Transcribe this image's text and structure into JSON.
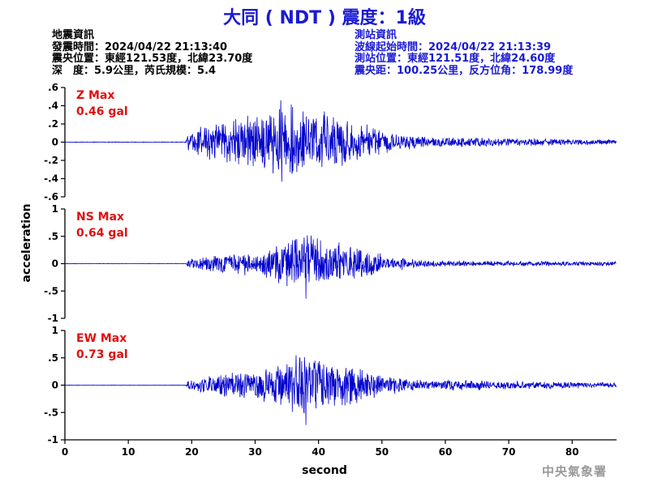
{
  "title": "大同 ( NDT ) 震度：1級",
  "quake_info": {
    "heading": "地震資訊",
    "origin_time": "發震時間：2024/04/22 21:13:40",
    "epicenter": "震央位置：東經121.53度，北緯23.70度",
    "depth_magnitude": "深　度：5.9公里，芮氏規模：5.4"
  },
  "station_info": {
    "heading": "測站資訊",
    "wave_start": "波線起始時間：2024/04/22 21:13:39",
    "location": "測站位置：東經121.51度，北緯24.60度",
    "distance": "震央距：100.25公里，反方位角：178.99度"
  },
  "credit": "中央氣象署",
  "colors": {
    "trace": "#0000cc",
    "title": "#1a1ad4",
    "peak_label": "#e01010"
  },
  "chart_data": {
    "type": "line",
    "xlabel": "second",
    "ylabel": "acceleration",
    "xlim": [
      0,
      87
    ],
    "xticks": [
      0,
      10,
      20,
      30,
      40,
      50,
      60,
      70,
      80
    ],
    "panels": [
      {
        "name": "Z Max",
        "peak_label": "0.46 gal",
        "ylim": [
          -0.6,
          0.6
        ],
        "yticks": [
          0.6,
          0.4,
          0.2,
          0,
          -0.2,
          -0.4,
          -0.6
        ],
        "amplitude": 0.46,
        "seed": 11,
        "envelope": [
          [
            0,
            0.004
          ],
          [
            19,
            0.004
          ],
          [
            19.5,
            0.12
          ],
          [
            22,
            0.22
          ],
          [
            27,
            0.28
          ],
          [
            33,
            0.38
          ],
          [
            34,
            0.46
          ],
          [
            38,
            0.38
          ],
          [
            44,
            0.3
          ],
          [
            48,
            0.2
          ],
          [
            52,
            0.1
          ],
          [
            58,
            0.06
          ],
          [
            72,
            0.045
          ],
          [
            87,
            0.03
          ]
        ]
      },
      {
        "name": "NS Max",
        "peak_label": "0.64 gal",
        "ylim": [
          -1,
          1
        ],
        "yticks": [
          1,
          0.5,
          0,
          -0.5,
          -1
        ],
        "amplitude": 0.64,
        "seed": 23,
        "envelope": [
          [
            0,
            0.004
          ],
          [
            19,
            0.004
          ],
          [
            19.5,
            0.08
          ],
          [
            24,
            0.18
          ],
          [
            30,
            0.26
          ],
          [
            35,
            0.45
          ],
          [
            38,
            0.6
          ],
          [
            41,
            0.5
          ],
          [
            45,
            0.36
          ],
          [
            50,
            0.2
          ],
          [
            55,
            0.08
          ],
          [
            60,
            0.06
          ],
          [
            87,
            0.04
          ]
        ]
      },
      {
        "name": "EW Max",
        "peak_label": "0.73 gal",
        "ylim": [
          -1,
          1
        ],
        "yticks": [
          1,
          0.5,
          0,
          -0.5,
          -1
        ],
        "amplitude": 0.73,
        "seed": 37,
        "envelope": [
          [
            0,
            0.004
          ],
          [
            19,
            0.004
          ],
          [
            19.5,
            0.1
          ],
          [
            24,
            0.22
          ],
          [
            30,
            0.3
          ],
          [
            35,
            0.5
          ],
          [
            38,
            0.7
          ],
          [
            41,
            0.55
          ],
          [
            45,
            0.4
          ],
          [
            50,
            0.22
          ],
          [
            55,
            0.12
          ],
          [
            70,
            0.08
          ],
          [
            87,
            0.05
          ]
        ]
      }
    ]
  }
}
